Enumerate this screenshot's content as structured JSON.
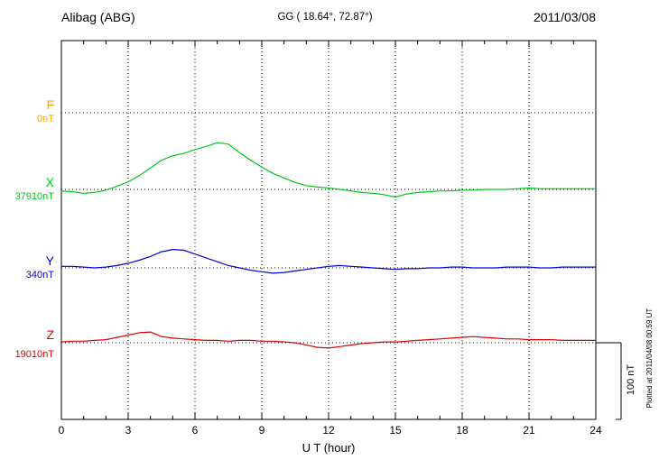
{
  "chart_data": {
    "type": "line",
    "station": "Alibag (ABG)",
    "coordinates": "GG ( 18.64°,  72.87°)",
    "date": "2011/03/08",
    "xlabel": "U T (hour)",
    "x_range": [
      0,
      24
    ],
    "x_ticks": [
      0,
      3,
      6,
      9,
      12,
      15,
      18,
      21,
      24
    ],
    "x_step_hours": 0.5,
    "grid": "dotted",
    "legend_position": "left",
    "scale_bar": {
      "label": "100 nT",
      "nT": 100
    },
    "plotted_at": "Plotted at 2011/04/08 00:59 UT",
    "series": [
      {
        "name": "F",
        "baseline_label": "0nT",
        "color": "#FFA500",
        "values": []
      },
      {
        "name": "X",
        "baseline_label": "37910nT",
        "color": "#00C818",
        "values": [
          -2,
          -3,
          -5,
          -4,
          -1,
          4,
          10,
          18,
          28,
          38,
          44,
          47,
          52,
          56,
          61,
          59,
          48,
          38,
          29,
          21,
          15,
          9,
          5,
          3,
          2,
          0,
          -2,
          -4,
          -5,
          -7,
          -10,
          -6,
          -4,
          -3,
          -2,
          -2,
          -1,
          -1,
          0,
          0,
          0,
          1,
          2,
          1,
          1,
          1,
          1,
          1,
          1
        ]
      },
      {
        "name": "Y",
        "baseline_label": "340nT",
        "color": "#0000DC",
        "values": [
          2,
          2,
          1,
          0,
          1,
          3,
          6,
          10,
          15,
          21,
          24,
          23,
          18,
          13,
          8,
          3,
          0,
          -3,
          -5,
          -7,
          -6,
          -4,
          -2,
          0,
          2,
          3,
          2,
          1,
          0,
          -1,
          -2,
          -1,
          -1,
          0,
          0,
          1,
          1,
          0,
          0,
          0,
          1,
          1,
          1,
          0,
          0,
          1,
          1,
          1,
          1
        ]
      },
      {
        "name": "Z",
        "baseline_label": "19010nT",
        "color": "#DC0000",
        "values": [
          1,
          2,
          2,
          3,
          4,
          7,
          10,
          13,
          14,
          8,
          6,
          5,
          4,
          3,
          3,
          2,
          3,
          3,
          2,
          2,
          1,
          0,
          -3,
          -6,
          -7,
          -5,
          -3,
          -1,
          0,
          1,
          1,
          2,
          3,
          4,
          5,
          6,
          7,
          8,
          7,
          6,
          5,
          5,
          4,
          4,
          4,
          3,
          3,
          3,
          3
        ]
      }
    ]
  }
}
